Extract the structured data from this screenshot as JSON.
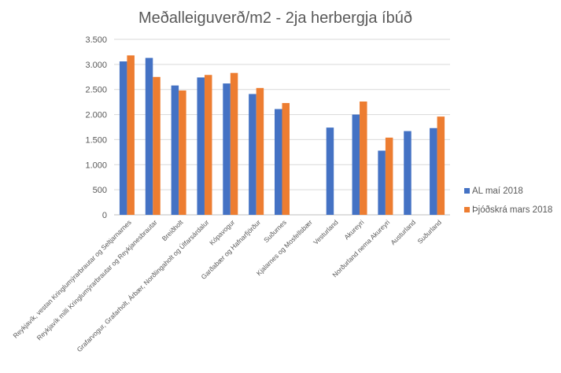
{
  "chart_data": {
    "type": "bar",
    "title": "Meðalleiguverð/m2 - 2ja herbergja íbúð",
    "xlabel": "",
    "ylabel": "",
    "ylim": [
      0,
      3500
    ],
    "yticks": [
      0,
      500,
      1000,
      1500,
      2000,
      2500,
      3000,
      3500
    ],
    "ytick_labels": [
      "0",
      "500",
      "1.000",
      "1.500",
      "2.000",
      "2.500",
      "3.000",
      "3.500"
    ],
    "grid": true,
    "legend_position": "right",
    "categories": [
      "Reykjavík, vestan Kringlumýrarbrautar og Seltjarnarnes",
      "Reykjavík milli Kringlumýrarbrautar og Reykjanesbrautar",
      "Breiðholt",
      "Grafarvogur, Grafarholt, Árbær, Norðlingaholt og Úlfarsárdalur",
      "Kópavogur",
      "Garðabær og Hafnarfjörður",
      "Suðurnes",
      "Kjalarnes og Mosfellsbær",
      "Vesturland",
      "Akureyri",
      "Norðurland nema Akureyri",
      "Austurland",
      "Suðurland"
    ],
    "series": [
      {
        "name": "AL maí 2018",
        "color": "#4472c4",
        "values": [
          3060,
          3130,
          2580,
          2740,
          2620,
          2410,
          2110,
          null,
          1740,
          2000,
          1280,
          1670,
          1730
        ]
      },
      {
        "name": "Þjóðskrá mars 2018",
        "color": "#ed7d31",
        "values": [
          3180,
          2750,
          2480,
          2790,
          2830,
          2530,
          2230,
          null,
          null,
          2260,
          1540,
          null,
          1960
        ]
      }
    ]
  }
}
